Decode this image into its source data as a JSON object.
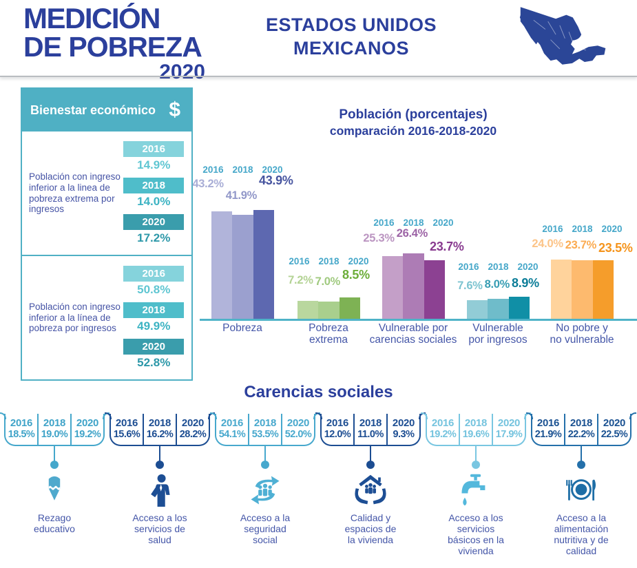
{
  "header": {
    "logo_line1": "MEDICIÓN",
    "logo_line2": "DE POBREZA",
    "logo_year": "2020",
    "country_line1": "ESTADOS UNIDOS",
    "country_line2": "MEXICANOS",
    "brand_color": "#2b3f9c",
    "map_color": "#2b4697"
  },
  "bienestar": {
    "title": "Bienestar económico",
    "symbol": "$",
    "accent": "#4fb0c4",
    "year_badge_colors": {
      "2016": "#85d3dc",
      "2018": "#4fbdca",
      "2020": "#3a9dac"
    },
    "value_colors": {
      "2016": "#5fc6d2",
      "2018": "#3cb3c3",
      "2020": "#2d98a9"
    },
    "rows": [
      {
        "label": "Población con ingreso inferior a la linea de pobreza extrema por ingresos",
        "values": [
          {
            "year": "2016",
            "value": "14.9%"
          },
          {
            "year": "2018",
            "value": "14.0%"
          },
          {
            "year": "2020",
            "value": "17.2%"
          }
        ]
      },
      {
        "label": "Población con ingreso inferior a la línea de pobreza por ingresos",
        "values": [
          {
            "year": "2016",
            "value": "50.8%"
          },
          {
            "year": "2018",
            "value": "49.9%"
          },
          {
            "year": "2020",
            "value": "52.8%"
          }
        ]
      }
    ]
  },
  "chart_data": {
    "type": "bar",
    "title": "Población (porcentajes)",
    "subtitle": "comparación 2016-2018-2020",
    "categories": [
      "Pobreza",
      "Pobreza extrema",
      "Vulnerable por carencias sociales",
      "Vulnerable por ingresos",
      "No pobre y no vulnerable"
    ],
    "category_lines": [
      [
        "Pobreza"
      ],
      [
        "Pobreza",
        "extrema"
      ],
      [
        "Vulnerable por",
        "carencias sociales"
      ],
      [
        "Vulnerable",
        "por ingresos"
      ],
      [
        "No pobre y",
        "no vulnerable"
      ]
    ],
    "series": [
      {
        "name": "2016",
        "values": [
          43.2,
          7.2,
          25.3,
          7.6,
          24.0
        ]
      },
      {
        "name": "2018",
        "values": [
          41.9,
          7.0,
          26.4,
          8.0,
          23.7
        ]
      },
      {
        "name": "2020",
        "values": [
          43.9,
          8.5,
          23.7,
          8.9,
          23.5
        ]
      }
    ],
    "value_labels": [
      [
        "43.2%",
        "41.9%",
        "43.9%"
      ],
      [
        "7.2%",
        "7.0%",
        "8.5%"
      ],
      [
        "25.3%",
        "26.4%",
        "23.7%"
      ],
      [
        "7.6%",
        "8.0%",
        "8.9%"
      ],
      [
        "24.0%",
        "23.7%",
        "23.5%"
      ]
    ],
    "unit": "%",
    "ylim": [
      0,
      50
    ],
    "grid": false,
    "legend_position": "years above each group",
    "year_label_color": "#45a7c9",
    "axis_line_color": "#4fb3c8",
    "category_label_color": "#4456a8",
    "bar_colors": [
      [
        "#b1b4da",
        "#9ba0cf",
        "#5d68b0"
      ],
      [
        "#b9d79e",
        "#a9cf8d",
        "#7eb254"
      ],
      [
        "#c49fc8",
        "#ad7cb5",
        "#8c4192"
      ],
      [
        "#92ccd6",
        "#6fbcca",
        "#108fa6"
      ],
      [
        "#ffd39c",
        "#fdba6e",
        "#f59d2b"
      ]
    ],
    "value_label_colors": [
      [
        "#a9aed6",
        "#9298c9",
        "#46549f"
      ],
      [
        "#b4d395",
        "#a0ca7f",
        "#6cad39"
      ],
      [
        "#bb95c1",
        "#9d64a6",
        "#883a8f"
      ],
      [
        "#7cc3d0",
        "#379db3",
        "#0c7d98"
      ],
      [
        "#fcc488",
        "#fbab51",
        "#f5941c"
      ]
    ]
  },
  "carencias": {
    "title": "Carencias sociales",
    "label_color": "#4456a8",
    "items": [
      {
        "label": "Rezago educativo",
        "label_lines": [
          "Rezago",
          "educativo"
        ],
        "icon": "pencil-icon",
        "accent": "#45a7cb",
        "text_color": "#3fa3c8",
        "icon_color": "#4fa9cd",
        "values": [
          {
            "year": "2016",
            "value": "18.5%"
          },
          {
            "year": "2018",
            "value": "19.0%"
          },
          {
            "year": "2020",
            "value": "19.2%"
          }
        ]
      },
      {
        "label": "Acceso a los servicios de salud",
        "label_lines": [
          "Acceso a los",
          "servicios de",
          "salud"
        ],
        "icon": "doctor-icon",
        "accent": "#1c4d92",
        "text_color": "#1c4d92",
        "icon_color": "#1d4e94",
        "values": [
          {
            "year": "2016",
            "value": "15.6%"
          },
          {
            "year": "2018",
            "value": "16.2%"
          },
          {
            "year": "2020",
            "value": "28.2%"
          }
        ]
      },
      {
        "label": "Acceso a la seguridad social",
        "label_lines": [
          "Acceso a la",
          "seguridad",
          "social"
        ],
        "icon": "circular-arrows-people-icon",
        "accent": "#47a8cd",
        "text_color": "#47a8cd",
        "icon_color": "#4fb0d4",
        "values": [
          {
            "year": "2016",
            "value": "54.1%"
          },
          {
            "year": "2018",
            "value": "53.5%"
          },
          {
            "year": "2020",
            "value": "52.0%"
          }
        ]
      },
      {
        "label": "Calidad y espacios de la vivienda",
        "label_lines": [
          "Calidad y",
          "espacios de",
          "la vivienda"
        ],
        "icon": "house-hands-icon",
        "accent": "#1c4d92",
        "text_color": "#1c4d92",
        "icon_color": "#1d4e94",
        "values": [
          {
            "year": "2016",
            "value": "12.0%"
          },
          {
            "year": "2018",
            "value": "11.0%"
          },
          {
            "year": "2020",
            "value": "9.3%"
          }
        ]
      },
      {
        "label": "Acceso a los servicios básicos en la vivienda",
        "label_lines": [
          "Acceso a los",
          "servicios",
          "básicos en la",
          "vivienda"
        ],
        "icon": "faucet-icon",
        "accent": "#79c6e1",
        "text_color": "#74c3de",
        "icon_color": "#54b8dc",
        "values": [
          {
            "year": "2016",
            "value": "19.2%"
          },
          {
            "year": "2018",
            "value": "19.6%"
          },
          {
            "year": "2020",
            "value": "17.9%"
          }
        ]
      },
      {
        "label": "Acceso a la alimentación nutritiva y de calidad",
        "label_lines": [
          "Acceso a la",
          "alimentación",
          "nutritiva y de",
          "calidad"
        ],
        "icon": "plate-cutlery-icon",
        "accent": "#2470aa",
        "text_color": "#1a5191",
        "icon_color": "#1e6ea6",
        "values": [
          {
            "year": "2016",
            "value": "21.9%"
          },
          {
            "year": "2018",
            "value": "22.2%"
          },
          {
            "year": "2020",
            "value": "22.5%"
          }
        ]
      }
    ]
  }
}
